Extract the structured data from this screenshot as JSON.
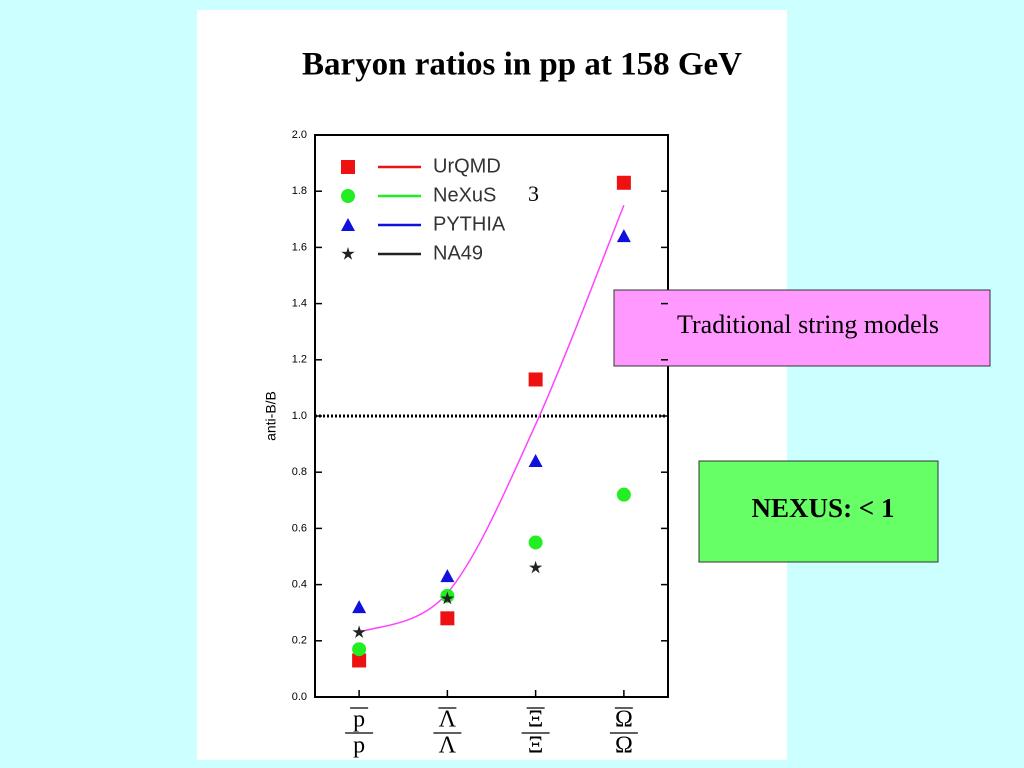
{
  "chart_data": {
    "type": "scatter",
    "title": "Baryon ratios in pp at 158 GeV",
    "y_label": "anti-B/B",
    "categories": [
      "p",
      "Λ",
      "Ξ",
      "Ω"
    ],
    "ylim": [
      0,
      2.0
    ],
    "yticks": [
      {
        "value": 0,
        "label": "0.0"
      },
      {
        "value": 0.2,
        "label": "0.2"
      },
      {
        "value": 0.4,
        "label": "0.4"
      },
      {
        "value": 0.6,
        "label": "0.6"
      },
      {
        "value": 0.8,
        "label": "0.8"
      },
      {
        "value": 1.0,
        "label": "1.0"
      },
      {
        "value": 1.2,
        "label": "1.2"
      },
      {
        "value": 1.4,
        "label": "1.4"
      },
      {
        "value": 1.6,
        "label": "1.6"
      },
      {
        "value": 1.8,
        "label": "1.8"
      },
      {
        "value": 2.0,
        "label": "2.0"
      }
    ],
    "series": [
      {
        "name": "UrQMD",
        "color": "#ee1111",
        "marker": "square",
        "values": [
          0.13,
          0.28,
          1.13,
          1.83
        ]
      },
      {
        "name": "NeXuS",
        "color": "#22ee22",
        "marker": "circle",
        "values": [
          0.17,
          0.36,
          0.55,
          0.72
        ]
      },
      {
        "name": "PYTHIA",
        "color": "#1111dd",
        "marker": "triangle",
        "values": [
          0.32,
          0.43,
          0.84,
          1.64
        ]
      },
      {
        "name": "NA49",
        "color": "#222222",
        "marker": "star",
        "values": [
          0.23,
          0.35,
          0.46,
          null
        ]
      }
    ],
    "fit_curve": {
      "color": "#ff44ff",
      "values": [
        0.23,
        0.37,
        0.97,
        1.75
      ]
    },
    "reference_line": 1.0,
    "legend_annotation": "3",
    "annotations": [
      "Traditional string models",
      "NEXUS: < 1"
    ]
  }
}
